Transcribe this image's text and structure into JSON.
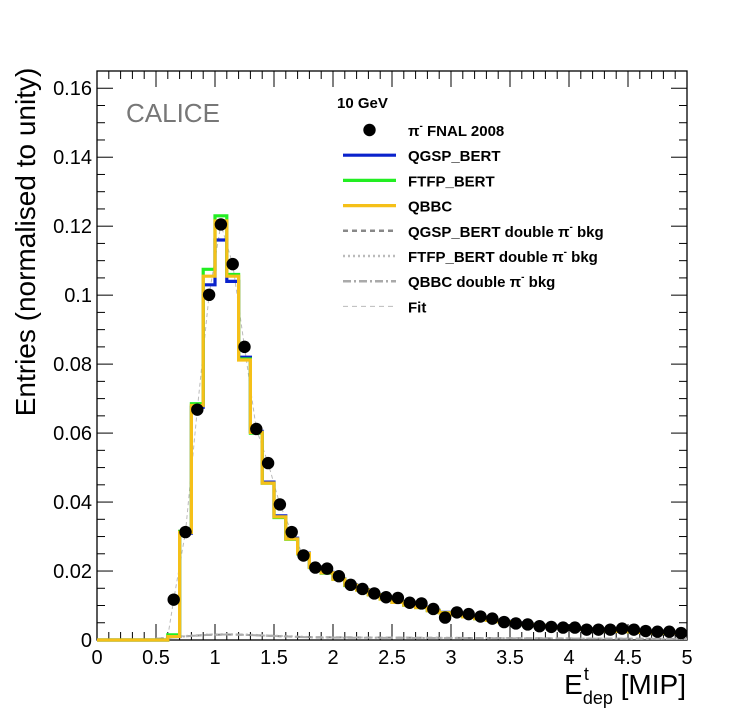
{
  "chart_data": {
    "type": "histogram",
    "title": "10 GeV",
    "watermark": "CALICE",
    "xlabel": "E",
    "xlabel_sup": "t",
    "xlabel_sub": "dep",
    "xlabel_unit": " [MIP]",
    "ylabel": "Entries (normalised to unity)",
    "xlim": [
      0,
      5
    ],
    "ylim": [
      0,
      0.165
    ],
    "xticks": [
      0,
      0.5,
      1,
      1.5,
      2,
      2.5,
      3,
      3.5,
      4,
      4.5,
      5
    ],
    "xtick_labels": [
      "0",
      "0.5",
      "1",
      "1.5",
      "2",
      "2.5",
      "3",
      "3.5",
      "4",
      "4.5",
      "5"
    ],
    "yticks": [
      0,
      0.02,
      0.04,
      0.06,
      0.08,
      0.1,
      0.12,
      0.14,
      0.16
    ],
    "ytick_labels": [
      "0",
      "0.02",
      "0.04",
      "0.06",
      "0.08",
      "0.1",
      "0.12",
      "0.14",
      "0.16"
    ],
    "bin_width": 0.1,
    "data": {
      "name": "π⁻ FNAL 2008",
      "x": [
        0.65,
        0.75,
        0.85,
        0.95,
        1.05,
        1.15,
        1.25,
        1.35,
        1.45,
        1.55,
        1.65,
        1.75,
        1.85,
        1.95,
        2.05,
        2.15,
        2.25,
        2.35,
        2.45,
        2.55,
        2.65,
        2.75,
        2.85,
        2.95,
        3.05,
        3.15,
        3.25,
        3.35,
        3.45,
        3.55,
        3.65,
        3.75,
        3.85,
        3.95,
        4.05,
        4.15,
        4.25,
        4.35,
        4.45,
        4.55,
        4.65,
        4.75,
        4.85,
        4.95
      ],
      "y": [
        0.0117,
        0.0313,
        0.0668,
        0.1001,
        0.1205,
        0.109,
        0.085,
        0.0612,
        0.0513,
        0.0393,
        0.0313,
        0.0245,
        0.021,
        0.0207,
        0.0185,
        0.016,
        0.0148,
        0.0135,
        0.0124,
        0.0122,
        0.0108,
        0.0106,
        0.009,
        0.0065,
        0.008,
        0.0075,
        0.0068,
        0.0062,
        0.0052,
        0.0048,
        0.0045,
        0.004,
        0.0038,
        0.0036,
        0.0036,
        0.003,
        0.003,
        0.003,
        0.0033,
        0.003,
        0.0026,
        0.0024,
        0.0024,
        0.002
      ]
    },
    "series": [
      {
        "name": "QGSP_BERT",
        "color": "#0a22cc",
        "values": [
          0.001,
          0.031,
          0.0675,
          0.103,
          0.116,
          0.104,
          0.082,
          0.0605,
          0.0458,
          0.036,
          0.0295,
          0.0252,
          0.0212,
          0.0196,
          0.0177,
          0.016,
          0.0146,
          0.0132,
          0.012,
          0.011,
          0.0102,
          0.0095,
          0.0086,
          0.008,
          0.0074,
          0.0068,
          0.0063,
          0.0058,
          0.0054,
          0.005,
          0.0046,
          0.0043,
          0.004,
          0.0037,
          0.0035,
          0.0032,
          0.003,
          0.0028,
          0.0026,
          0.0024,
          0.0023,
          0.0021,
          0.002,
          0.0019
        ]
      },
      {
        "name": "FTFP_BERT",
        "color": "#22ee22",
        "values": [
          0.0015,
          0.0315,
          0.0685,
          0.1075,
          0.123,
          0.106,
          0.0815,
          0.06,
          0.0455,
          0.0355,
          0.0292,
          0.025,
          0.021,
          0.0194,
          0.0176,
          0.0158,
          0.0145,
          0.0131,
          0.0119,
          0.0109,
          0.0101,
          0.0094,
          0.0085,
          0.0079,
          0.0073,
          0.0067,
          0.0062,
          0.0057,
          0.0053,
          0.0049,
          0.0045,
          0.0042,
          0.0039,
          0.0036,
          0.0034,
          0.0031,
          0.0029,
          0.0027,
          0.0025,
          0.0024,
          0.0022,
          0.0021,
          0.002,
          0.0019
        ]
      },
      {
        "name": "QBBC",
        "color": "#f5c018",
        "values": [
          0.001,
          0.0312,
          0.068,
          0.1055,
          0.1215,
          0.1055,
          0.0812,
          0.0602,
          0.0455,
          0.0357,
          0.0293,
          0.0251,
          0.0211,
          0.0195,
          0.0176,
          0.0159,
          0.0145,
          0.0131,
          0.0119,
          0.0109,
          0.0101,
          0.0094,
          0.0085,
          0.0079,
          0.0073,
          0.0067,
          0.0062,
          0.0057,
          0.0053,
          0.0049,
          0.0045,
          0.0042,
          0.0039,
          0.0036,
          0.0034,
          0.0031,
          0.0029,
          0.0027,
          0.0025,
          0.0024,
          0.0022,
          0.0021,
          0.002,
          0.0019
        ]
      }
    ],
    "background": [
      {
        "name": "QGSP_BERT double π⁻ bkg",
        "color": "#888888",
        "style": "dashed",
        "values": [
          0.0003,
          0.0008,
          0.0012,
          0.0015,
          0.0016,
          0.0015,
          0.0013,
          0.0011,
          0.0009,
          0.0008
        ]
      },
      {
        "name": "FTFP_BERT double π⁻ bkg",
        "color": "#bbbbbb",
        "style": "dotted",
        "values": [
          0.0004,
          0.0009,
          0.0013,
          0.0016,
          0.0017,
          0.0016,
          0.0014,
          0.0012,
          0.001,
          0.0008
        ]
      },
      {
        "name": "QBBC double π⁻ bkg",
        "color": "#aaaaaa",
        "style": "dashdot",
        "values": [
          0.0003,
          0.0008,
          0.0012,
          0.0015,
          0.0016,
          0.0015,
          0.0013,
          0.0011,
          0.0009,
          0.0007
        ]
      }
    ],
    "fit": {
      "name": "Fit",
      "color": "#bbbbbb",
      "style": "dashed"
    },
    "legend": {
      "placement": "top-right",
      "entries": [
        {
          "label": "π",
          "sup": "-",
          "tail": " FNAL 2008",
          "kind": "marker",
          "color": "#000000"
        },
        {
          "label": "QGSP_BERT",
          "kind": "line",
          "color": "#0a22cc"
        },
        {
          "label": "FTFP_BERT",
          "kind": "line",
          "color": "#22ee22"
        },
        {
          "label": "QBBC",
          "kind": "line",
          "color": "#f5c018"
        },
        {
          "label": "QGSP_BERT double π",
          "sup": "-",
          "tail": " bkg",
          "kind": "dashed",
          "color": "#888888"
        },
        {
          "label": "FTFP_BERT double π",
          "sup": "-",
          "tail": " bkg",
          "kind": "dotted",
          "color": "#bbbbbb"
        },
        {
          "label": "QBBC double π",
          "sup": "-",
          "tail": " bkg",
          "kind": "dashdot",
          "color": "#aaaaaa"
        },
        {
          "label": "Fit",
          "kind": "thin-dashed",
          "color": "#bbbbbb"
        }
      ]
    }
  }
}
